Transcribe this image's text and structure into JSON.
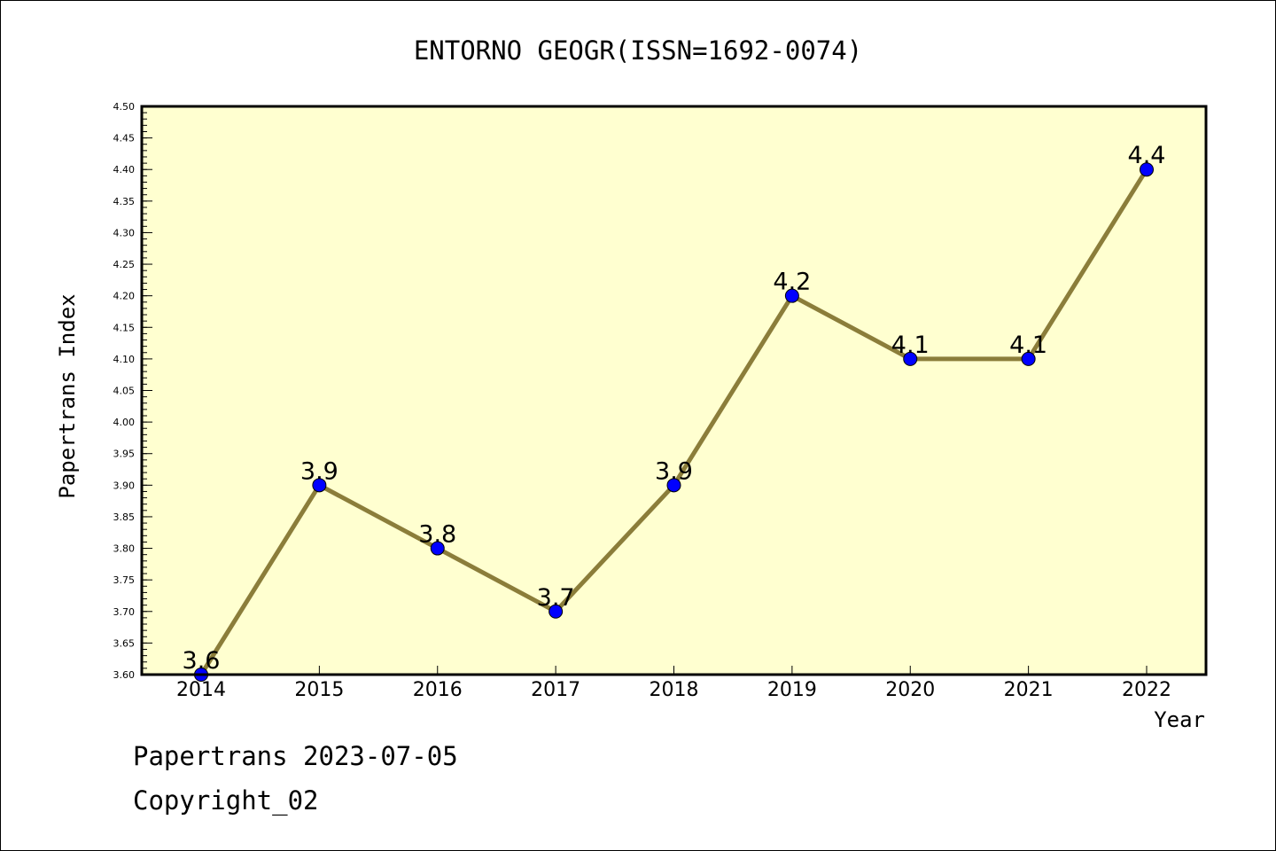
{
  "chart_data": {
    "type": "line",
    "title": "ENTORNO GEOGR(ISSN=1692-0074)",
    "xlabel": "Year",
    "ylabel": "Papertrans Index",
    "x": [
      "2014",
      "2015",
      "2016",
      "2017",
      "2018",
      "2019",
      "2020",
      "2021",
      "2022"
    ],
    "series": [
      {
        "values": [
          3.6,
          3.9,
          3.8,
          3.7,
          3.9,
          4.2,
          4.1,
          4.1,
          4.4
        ]
      }
    ],
    "data_labels": [
      "3.6",
      "3.9",
      "3.8",
      "3.7",
      "3.9",
      "4.2",
      "4.1",
      "4.1",
      "4.4"
    ],
    "ylim": [
      3.6,
      4.5
    ],
    "yticks": [
      "3.60",
      "3.65",
      "3.70",
      "3.75",
      "3.80",
      "3.85",
      "3.90",
      "3.95",
      "4.00",
      "4.05",
      "4.10",
      "4.15",
      "4.20",
      "4.25",
      "4.30",
      "4.35",
      "4.40",
      "4.45",
      "4.50"
    ],
    "grid": false,
    "colors": {
      "line": "#8b7d3a",
      "marker": "#0000ff",
      "plot_bg": "#ffffd0"
    }
  },
  "footer": {
    "line1": "Papertrans 2023-07-05",
    "line2": "Copyright_02"
  }
}
